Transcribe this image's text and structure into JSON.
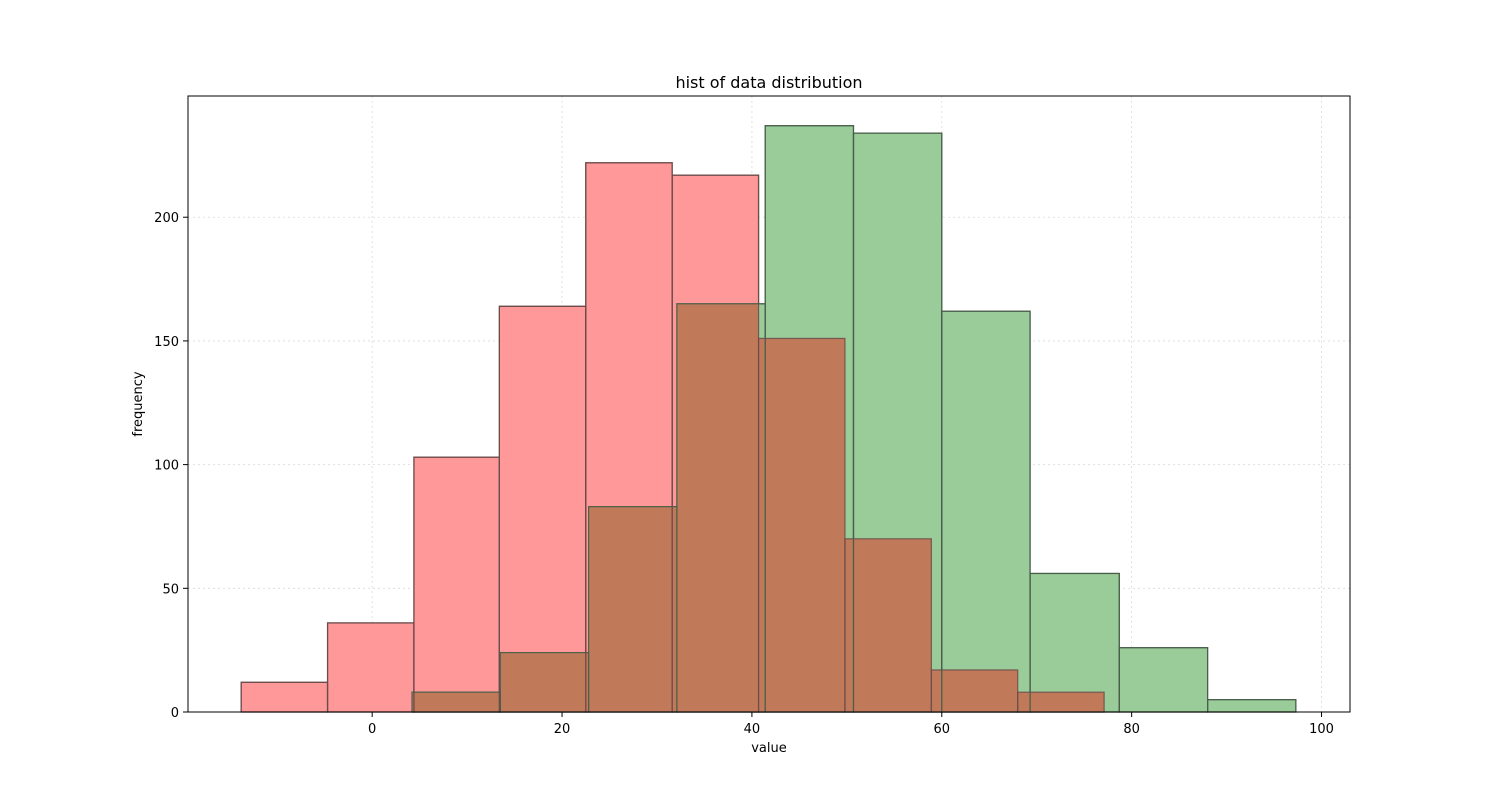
{
  "chart_data": {
    "type": "bar",
    "title": "hist of data distribution",
    "xlabel": "value",
    "ylabel": "frequency",
    "xlim": [
      -19.4,
      103.0
    ],
    "ylim": [
      0,
      249
    ],
    "xticks": [
      0,
      20,
      40,
      60,
      80,
      100
    ],
    "yticks": [
      0,
      50,
      100,
      150,
      200
    ],
    "grid": true,
    "legend": "none",
    "series": [
      {
        "color": "#ff9999",
        "edgecolor": "#6b4a4a",
        "bins": [
          {
            "x0": -13.8,
            "x1": -4.7,
            "value": 12
          },
          {
            "x0": -4.7,
            "x1": 4.4,
            "value": 36
          },
          {
            "x0": 4.4,
            "x1": 13.4,
            "value": 103
          },
          {
            "x0": 13.4,
            "x1": 22.5,
            "value": 164
          },
          {
            "x0": 22.5,
            "x1": 31.6,
            "value": 222
          },
          {
            "x0": 31.6,
            "x1": 40.7,
            "value": 217
          },
          {
            "x0": 40.7,
            "x1": 49.8,
            "value": 151
          },
          {
            "x0": 49.8,
            "x1": 58.9,
            "value": 70
          },
          {
            "x0": 58.9,
            "x1": 68.0,
            "value": 17
          },
          {
            "x0": 68.0,
            "x1": 77.1,
            "value": 8
          }
        ]
      },
      {
        "color": "#99cc99",
        "edgecolor": "#4a5e4a",
        "bins": [
          {
            "x0": 4.2,
            "x1": 13.5,
            "value": 8
          },
          {
            "x0": 13.5,
            "x1": 22.8,
            "value": 24
          },
          {
            "x0": 22.8,
            "x1": 32.1,
            "value": 83
          },
          {
            "x0": 32.1,
            "x1": 41.4,
            "value": 165
          },
          {
            "x0": 41.4,
            "x1": 50.7,
            "value": 237
          },
          {
            "x0": 50.7,
            "x1": 60.0,
            "value": 234
          },
          {
            "x0": 60.0,
            "x1": 69.3,
            "value": 162
          },
          {
            "x0": 69.3,
            "x1": 78.7,
            "value": 56
          },
          {
            "x0": 78.7,
            "x1": 88.0,
            "value": 26
          },
          {
            "x0": 88.0,
            "x1": 97.3,
            "value": 5
          }
        ]
      }
    ]
  }
}
